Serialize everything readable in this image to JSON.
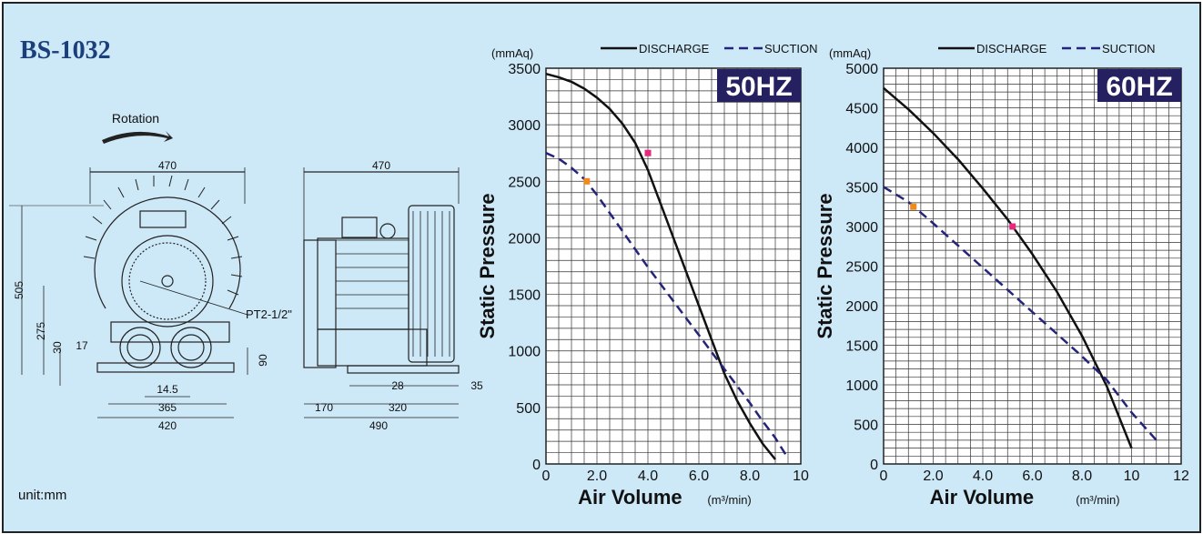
{
  "model": "BS-1032",
  "unit_note": "unit:mm",
  "drawing": {
    "rotation_label": "Rotation",
    "port_label": "PT2-1/2\"",
    "front_view_dims": [
      "470",
      "505",
      "275",
      "30",
      "17",
      "14.5",
      "365",
      "420",
      "90"
    ],
    "side_view_dims": [
      "470",
      "28",
      "35",
      "170",
      "320",
      "490"
    ]
  },
  "colors": {
    "background": "#cde8f7",
    "discharge": "#111111",
    "suction": "#24247a",
    "badge": "#25205f",
    "discharge_marker": "#e8287a",
    "suction_marker": "#f08a1e"
  },
  "chart_data": [
    {
      "type": "line",
      "title": "50HZ",
      "xlabel": "Air Volume",
      "xunit": "(m³/min)",
      "ylabel": "Static Pressure",
      "yunit": "(mmAq)",
      "xlim": [
        0,
        10
      ],
      "ylim": [
        0,
        3500
      ],
      "xticks": [
        0,
        2,
        4,
        6,
        8,
        10
      ],
      "xtick_labels": [
        "0",
        "2.0",
        "4.0",
        "6.0",
        "8.0",
        "10"
      ],
      "yticks": [
        0,
        500,
        1000,
        1500,
        2000,
        2500,
        3000,
        3500
      ],
      "grid": true,
      "legend": [
        "DISCHARGE",
        "SUCTION"
      ],
      "legend_position": "top",
      "series": [
        {
          "name": "DISCHARGE",
          "style": "solid",
          "x": [
            0,
            0.5,
            1.0,
            1.5,
            2.0,
            2.5,
            3.0,
            3.5,
            4.0,
            4.5,
            5.0,
            5.5,
            6.0,
            6.5,
            7.0,
            7.5,
            8.0,
            8.5,
            9.0
          ],
          "y": [
            3450,
            3420,
            3380,
            3320,
            3240,
            3140,
            3010,
            2840,
            2600,
            2300,
            2000,
            1700,
            1400,
            1100,
            800,
            560,
            360,
            180,
            40
          ],
          "marker": {
            "x": 4.0,
            "y": 2750
          }
        },
        {
          "name": "SUCTION",
          "style": "dashed",
          "x": [
            0,
            0.5,
            1.0,
            1.5,
            2.0,
            2.5,
            3.0,
            3.5,
            4.0,
            4.5,
            5.0,
            5.5,
            6.0,
            6.5,
            7.0,
            7.5,
            8.0,
            8.5,
            9.0,
            9.5
          ],
          "y": [
            2750,
            2700,
            2620,
            2520,
            2380,
            2220,
            2060,
            1900,
            1740,
            1590,
            1440,
            1290,
            1140,
            990,
            840,
            690,
            540,
            380,
            230,
            50
          ],
          "marker": {
            "x": 1.6,
            "y": 2500
          }
        }
      ]
    },
    {
      "type": "line",
      "title": "60HZ",
      "xlabel": "Air Volume",
      "xunit": "(m³/min)",
      "ylabel": "Static Pressure",
      "yunit": "(mmAq)",
      "xlim": [
        0,
        12
      ],
      "ylim": [
        0,
        5000
      ],
      "xticks": [
        0,
        2,
        4,
        6,
        8,
        10,
        12
      ],
      "xtick_labels": [
        "0",
        "2.0",
        "4.0",
        "6.0",
        "8.0",
        "10",
        "12"
      ],
      "yticks": [
        0,
        500,
        1000,
        1500,
        2000,
        2500,
        3000,
        3500,
        4000,
        4500,
        5000
      ],
      "grid": true,
      "legend": [
        "DISCHARGE",
        "SUCTION"
      ],
      "legend_position": "top",
      "series": [
        {
          "name": "DISCHARGE",
          "style": "solid",
          "x": [
            0,
            1,
            2,
            3,
            4,
            5,
            6,
            7,
            8,
            9,
            10
          ],
          "y": [
            4750,
            4480,
            4180,
            3850,
            3480,
            3090,
            2650,
            2170,
            1620,
            980,
            200
          ],
          "marker": {
            "x": 5.2,
            "y": 3000
          }
        },
        {
          "name": "SUCTION",
          "style": "dashed",
          "x": [
            0,
            1,
            2,
            3,
            4,
            5,
            6,
            7,
            8,
            9,
            10,
            11
          ],
          "y": [
            3500,
            3310,
            3040,
            2760,
            2480,
            2200,
            1920,
            1640,
            1360,
            1060,
            650,
            300
          ],
          "marker": {
            "x": 1.2,
            "y": 3250
          }
        }
      ]
    }
  ]
}
